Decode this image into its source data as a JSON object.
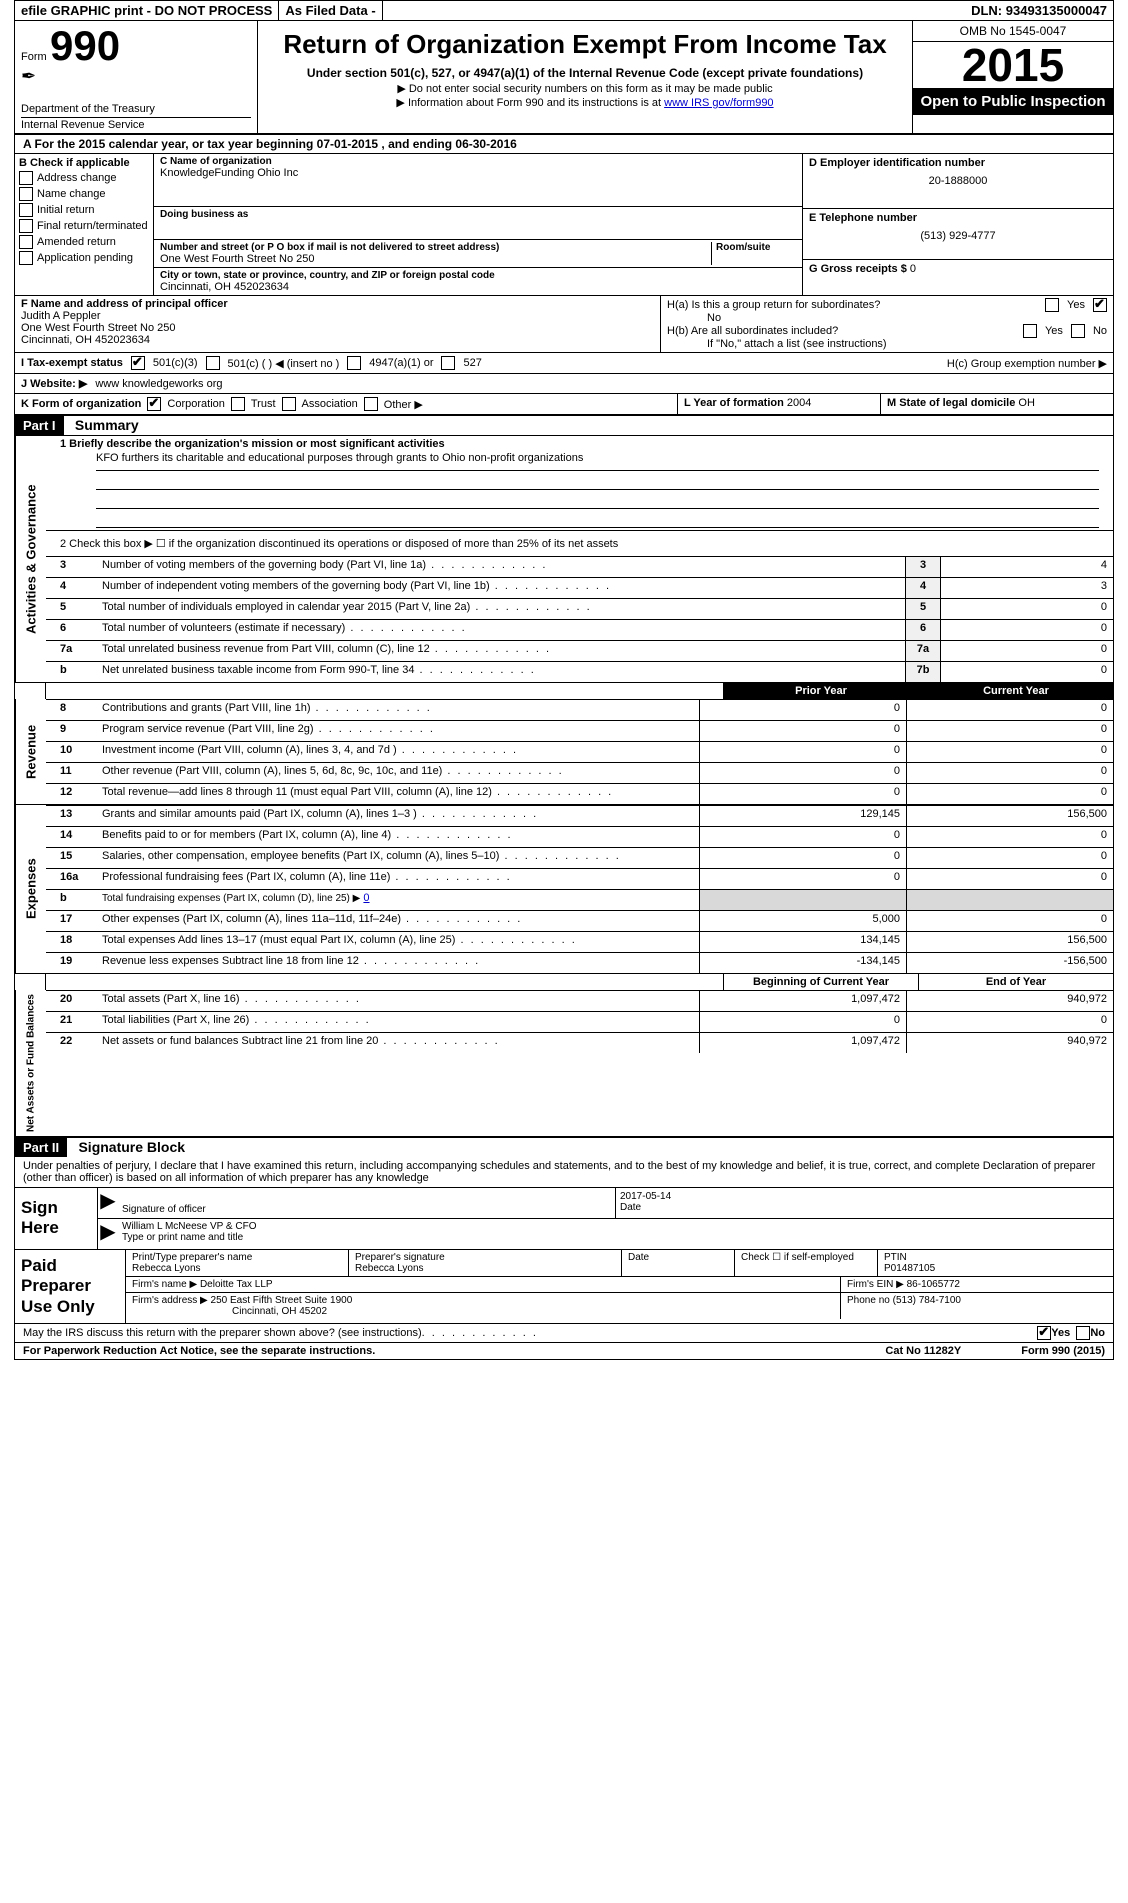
{
  "topbar": {
    "efile": "efile GRAPHIC print - DO NOT PROCESS",
    "asfiled": "As Filed Data -",
    "dln_label": "DLN:",
    "dln": "93493135000047"
  },
  "header": {
    "form_word": "Form",
    "form_num": "990",
    "dept": "Department of the Treasury",
    "irs": "Internal Revenue Service",
    "title": "Return of Organization Exempt From Income Tax",
    "sub": "Under section 501(c), 527, or 4947(a)(1) of the Internal Revenue Code (except private foundations)",
    "note1": "▶ Do not enter social security numbers on this form as it may be made public",
    "note2": "▶ Information about Form 990 and its instructions is at ",
    "note2_link": "www IRS gov/form990",
    "omb": "OMB No 1545-0047",
    "year": "2015",
    "open": "Open to Public Inspection"
  },
  "rowA": {
    "text_pre": "A  For the 2015 calendar year, or tax year beginning ",
    "begin": "07-01-2015",
    "mid": " , and ending ",
    "end": "06-30-2016"
  },
  "B": {
    "hdr": "B Check if applicable",
    "opts": [
      "Address change",
      "Name change",
      "Initial return",
      "Final return/terminated",
      "Amended return",
      "Application pending"
    ]
  },
  "C": {
    "name_lab": "C Name of organization",
    "name": "KnowledgeFunding Ohio Inc",
    "dba_lab": "Doing business as",
    "dba": "",
    "street_lab": "Number and street (or P O box if mail is not delivered to street address)",
    "room_lab": "Room/suite",
    "street": "One West Fourth Street No 250",
    "city_lab": "City or town, state or province, country, and ZIP or foreign postal code",
    "city": "Cincinnati, OH 452023634"
  },
  "D": {
    "lab": "D Employer identification number",
    "val": "20-1888000"
  },
  "E": {
    "lab": "E Telephone number",
    "val": "(513) 929-4777"
  },
  "G": {
    "lab": "G Gross receipts $",
    "val": "0"
  },
  "F": {
    "lab": "F  Name and address of principal officer",
    "name": "Judith A Peppler",
    "street": "One West Fourth Street No 250",
    "city": "Cincinnati, OH 452023634"
  },
  "H": {
    "a_lab": "H(a)  Is this a group return for subordinates?",
    "a_ans": "No",
    "b_lab": "H(b)  Are all subordinates included?",
    "b_note": "If \"No,\" attach a list (see instructions)",
    "c_lab": "H(c)  Group exemption number ▶"
  },
  "I": {
    "lab": "I   Tax-exempt status",
    "opts": [
      "501(c)(3)",
      "501(c) (  ) ◀ (insert no )",
      "4947(a)(1) or",
      "527"
    ],
    "checked": 0
  },
  "J": {
    "lab": "J  Website: ▶",
    "val": "www knowledgeworks org"
  },
  "K": {
    "lab": "K Form of organization",
    "opts": [
      "Corporation",
      "Trust",
      "Association",
      "Other ▶"
    ],
    "checked": 0
  },
  "L": {
    "lab": "L Year of formation",
    "val": "2004"
  },
  "M": {
    "lab": "M State of legal domicile",
    "val": "OH"
  },
  "part1": {
    "hdr": "Part I",
    "title": "Summary",
    "side_ag": "Activities & Governance",
    "side_rev": "Revenue",
    "side_exp": "Expenses",
    "side_na": "Net Assets or Fund Balances",
    "l1": "1 Briefly describe the organization's mission or most significant activities",
    "mission": "KFO furthers its charitable and educational purposes through grants to Ohio non-profit organizations",
    "l2": "2  Check this box ▶ ☐ if the organization discontinued its operations or disposed of more than 25% of its net assets",
    "rows_small": [
      {
        "n": "3",
        "t": "Number of voting members of the governing body (Part VI, line 1a)",
        "b": "3",
        "v": "4"
      },
      {
        "n": "4",
        "t": "Number of independent voting members of the governing body (Part VI, line 1b)",
        "b": "4",
        "v": "3"
      },
      {
        "n": "5",
        "t": "Total number of individuals employed in calendar year 2015 (Part V, line 2a)",
        "b": "5",
        "v": "0"
      },
      {
        "n": "6",
        "t": "Total number of volunteers (estimate if necessary)",
        "b": "6",
        "v": "0"
      },
      {
        "n": "7a",
        "t": "Total unrelated business revenue from Part VIII, column (C), line 12",
        "b": "7a",
        "v": "0"
      },
      {
        "n": "b",
        "t": "Net unrelated business taxable income from Form 990-T, line 34",
        "b": "7b",
        "v": "0"
      }
    ],
    "col_hdr1": "Prior Year",
    "col_hdr2": "Current Year",
    "rev_rows": [
      {
        "n": "8",
        "t": "Contributions and grants (Part VIII, line 1h)",
        "c1": "0",
        "c2": "0"
      },
      {
        "n": "9",
        "t": "Program service revenue (Part VIII, line 2g)",
        "c1": "0",
        "c2": "0"
      },
      {
        "n": "10",
        "t": "Investment income (Part VIII, column (A), lines 3, 4, and 7d )",
        "c1": "0",
        "c2": "0"
      },
      {
        "n": "11",
        "t": "Other revenue (Part VIII, column (A), lines 5, 6d, 8c, 9c, 10c, and 11e)",
        "c1": "0",
        "c2": "0"
      },
      {
        "n": "12",
        "t": "Total revenue—add lines 8 through 11 (must equal Part VIII, column (A), line 12)",
        "c1": "0",
        "c2": "0"
      }
    ],
    "exp_rows": [
      {
        "n": "13",
        "t": "Grants and similar amounts paid (Part IX, column (A), lines 1–3 )",
        "c1": "129,145",
        "c2": "156,500"
      },
      {
        "n": "14",
        "t": "Benefits paid to or for members (Part IX, column (A), line 4)",
        "c1": "0",
        "c2": "0"
      },
      {
        "n": "15",
        "t": "Salaries, other compensation, employee benefits (Part IX, column (A), lines 5–10)",
        "c1": "0",
        "c2": "0"
      },
      {
        "n": "16a",
        "t": "Professional fundraising fees (Part IX, column (A), line 11e)",
        "c1": "0",
        "c2": "0"
      }
    ],
    "exp_b": {
      "n": "b",
      "t": "Total fundraising expenses (Part IX, column (D), line 25) ▶",
      "v": "0"
    },
    "exp_rows2": [
      {
        "n": "17",
        "t": "Other expenses (Part IX, column (A), lines 11a–11d, 11f–24e)",
        "c1": "5,000",
        "c2": "0"
      },
      {
        "n": "18",
        "t": "Total expenses Add lines 13–17 (must equal Part IX, column (A), line 25)",
        "c1": "134,145",
        "c2": "156,500"
      },
      {
        "n": "19",
        "t": "Revenue less expenses Subtract line 18 from line 12",
        "c1": "-134,145",
        "c2": "-156,500"
      }
    ],
    "na_hdr1": "Beginning of Current Year",
    "na_hdr2": "End of Year",
    "na_rows": [
      {
        "n": "20",
        "t": "Total assets (Part X, line 16)",
        "c1": "1,097,472",
        "c2": "940,972"
      },
      {
        "n": "21",
        "t": "Total liabilities (Part X, line 26)",
        "c1": "0",
        "c2": "0"
      },
      {
        "n": "22",
        "t": "Net assets or fund balances Subtract line 21 from line 20",
        "c1": "1,097,472",
        "c2": "940,972"
      }
    ]
  },
  "part2": {
    "hdr": "Part II",
    "title": "Signature Block",
    "decl": "Under penalties of perjury, I declare that I have examined this return, including accompanying schedules and statements, and to the best of my knowledge and belief, it is true, correct, and complete Declaration of preparer (other than officer) is based on all information of which preparer has any knowledge",
    "sign_here": "Sign Here",
    "sig_of_officer": "Signature of officer",
    "sig_date": "2017-05-14",
    "sig_date_lab": "Date",
    "officer_name": "William L McNeese VP & CFO",
    "type_name": "Type or print name and title",
    "paid": "Paid Preparer Use Only",
    "prep_name_lab": "Print/Type preparer's name",
    "prep_name": "Rebecca Lyons",
    "prep_sig_lab": "Preparer's signature",
    "prep_sig": "Rebecca Lyons",
    "prep_date_lab": "Date",
    "prep_date": "",
    "self_emp": "Check ☐ if self-employed",
    "ptin_lab": "PTIN",
    "ptin": "P01487105",
    "firm_name_lab": "Firm's name   ▶",
    "firm_name": "Deloitte Tax LLP",
    "firm_ein_lab": "Firm's EIN ▶",
    "firm_ein": "86-1065772",
    "firm_addr_lab": "Firm's address ▶",
    "firm_addr": "250 East Fifth Street Suite 1900",
    "firm_city": "Cincinnati, OH  45202",
    "phone_lab": "Phone no",
    "phone": "(513) 784-7100",
    "discuss": "May the IRS discuss this return with the preparer shown above? (see instructions)",
    "yes": "Yes",
    "no": "No"
  },
  "footer": {
    "pra": "For Paperwork Reduction Act Notice, see the separate instructions.",
    "cat": "Cat No 11282Y",
    "form": "Form 990 (2015)"
  }
}
